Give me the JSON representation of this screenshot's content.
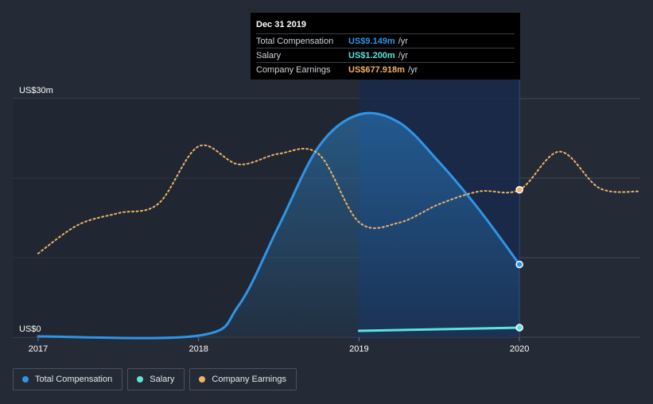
{
  "colors": {
    "total": "#2f95e8",
    "salary": "#5de3dc",
    "earnings": "#f0b368",
    "grid": "#414754",
    "axis_text": "#ffffff"
  },
  "tooltip": {
    "date": "Dec 31 2019",
    "rows": [
      {
        "label": "Total Compensation",
        "value": "US$9.149m",
        "unit": "/yr",
        "color": "#2f95e8"
      },
      {
        "label": "Salary",
        "value": "US$1.200m",
        "unit": "/yr",
        "color": "#5de3dc"
      },
      {
        "label": "Company Earnings",
        "value": "US$677.918m",
        "unit": "/yr",
        "color": "#f0b368"
      }
    ]
  },
  "legend": [
    {
      "label": "Total Compensation",
      "color": "#2f95e8"
    },
    {
      "label": "Salary",
      "color": "#5de3dc"
    },
    {
      "label": "Company Earnings",
      "color": "#f0b368"
    }
  ],
  "chart_data": {
    "type": "area",
    "y_axis_labels": [
      "US$30m",
      "US$0"
    ],
    "ylim": [
      0,
      30
    ],
    "xlim": [
      2017,
      2020.75
    ],
    "x_ticks": [
      "2017",
      "2018",
      "2019",
      "2020"
    ],
    "grid": true,
    "legend_position": "bottom-left",
    "highlight_range": [
      2019,
      2020
    ],
    "series": [
      {
        "name": "Total Compensation",
        "unit": "US$m",
        "x": [
          2017,
          2018,
          2018.25,
          2018.5,
          2018.75,
          2019,
          2019.25,
          2019.5,
          2019.75,
          2020
        ],
        "values": [
          0.1,
          0.2,
          4.0,
          14.0,
          24.0,
          28.0,
          27.0,
          22.0,
          16.0,
          9.149
        ]
      },
      {
        "name": "Salary",
        "unit": "US$m",
        "x": [
          2019,
          2020
        ],
        "values": [
          0.8,
          1.2
        ]
      },
      {
        "name": "Company Earnings",
        "unit": "US$m",
        "axis": "secondary",
        "x": [
          2017,
          2017.25,
          2017.5,
          2017.75,
          2018,
          2018.25,
          2018.5,
          2018.75,
          2019,
          2019.25,
          2019.5,
          2019.75,
          2020,
          2020.25,
          2020.5,
          2020.75
        ],
        "values": [
          558,
          612,
          634,
          652,
          760,
          726,
          746,
          745,
          617,
          616,
          651,
          675,
          678,
          750,
          681,
          675
        ]
      }
    ]
  }
}
